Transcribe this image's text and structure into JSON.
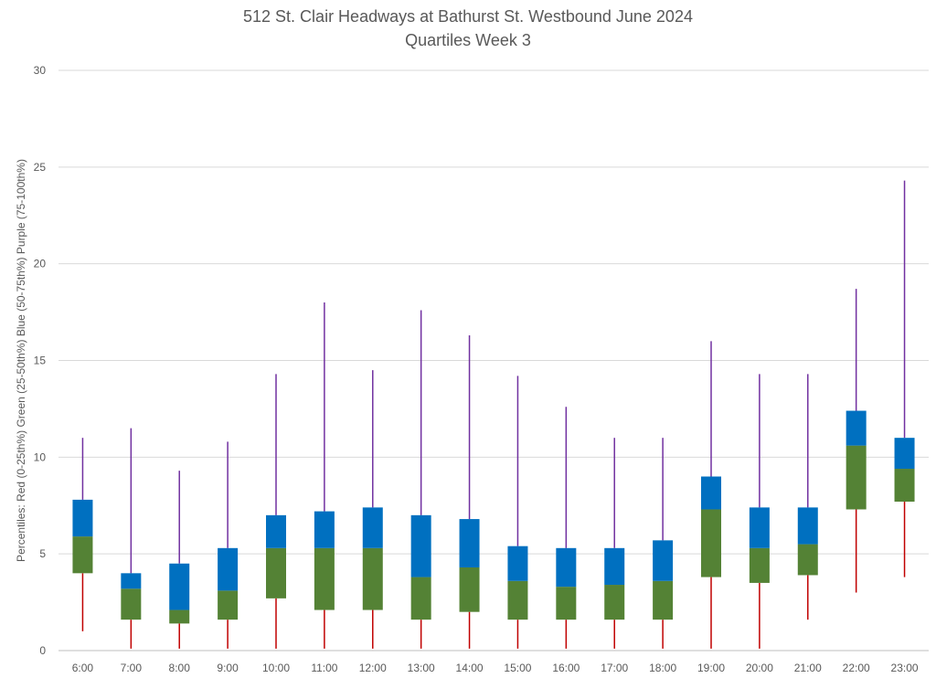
{
  "chart_data": {
    "type": "box",
    "title": "512 St. Clair Headways at Bathurst St. Westbound June 2024",
    "subtitle": "Quartiles Week 3",
    "ylabel": "Percentiles:  Red (0-25th%)  Green (25-50th%)  Blue (50-75th%)  Purple (75-100th%)",
    "xlabel": "",
    "ylim": [
      0,
      30
    ],
    "yticks": [
      0,
      5,
      10,
      15,
      20,
      25,
      30
    ],
    "grid": true,
    "categories": [
      "6:00",
      "7:00",
      "8:00",
      "9:00",
      "10:00",
      "11:00",
      "12:00",
      "13:00",
      "14:00",
      "15:00",
      "16:00",
      "17:00",
      "18:00",
      "19:00",
      "20:00",
      "21:00",
      "22:00",
      "23:00"
    ],
    "series": [
      {
        "name": "0-25th%",
        "color": "#C00000",
        "values": [
          1.0,
          0.1,
          0.1,
          0.1,
          0.1,
          0.1,
          0.1,
          0.1,
          0.1,
          0.1,
          0.1,
          0.1,
          0.1,
          0.1,
          0.1,
          1.6,
          3.0,
          3.8
        ]
      },
      {
        "name": "25th%",
        "color": "#C00000",
        "values": [
          4.0,
          1.6,
          1.4,
          1.6,
          2.7,
          2.1,
          2.1,
          1.6,
          2.0,
          1.6,
          1.6,
          1.6,
          1.6,
          3.8,
          3.5,
          3.9,
          7.3,
          7.7
        ]
      },
      {
        "name": "50th%",
        "color": "#548235",
        "values": [
          5.9,
          3.2,
          2.1,
          3.1,
          5.3,
          5.3,
          5.3,
          3.8,
          4.3,
          3.6,
          3.3,
          3.4,
          3.6,
          7.3,
          5.3,
          5.5,
          10.6,
          9.4
        ]
      },
      {
        "name": "75th%",
        "color": "#0070C0",
        "values": [
          7.8,
          4.0,
          4.5,
          5.3,
          7.0,
          7.2,
          7.4,
          7.0,
          6.8,
          5.4,
          5.3,
          5.3,
          5.7,
          9.0,
          7.4,
          7.4,
          12.4,
          11.0
        ]
      },
      {
        "name": "100th%",
        "color": "#7030A0",
        "values": [
          11.0,
          11.5,
          9.3,
          10.8,
          14.3,
          18.0,
          14.5,
          17.6,
          16.3,
          14.2,
          12.6,
          11.0,
          11.0,
          16.0,
          14.3,
          14.3,
          18.7,
          24.3
        ]
      }
    ]
  }
}
